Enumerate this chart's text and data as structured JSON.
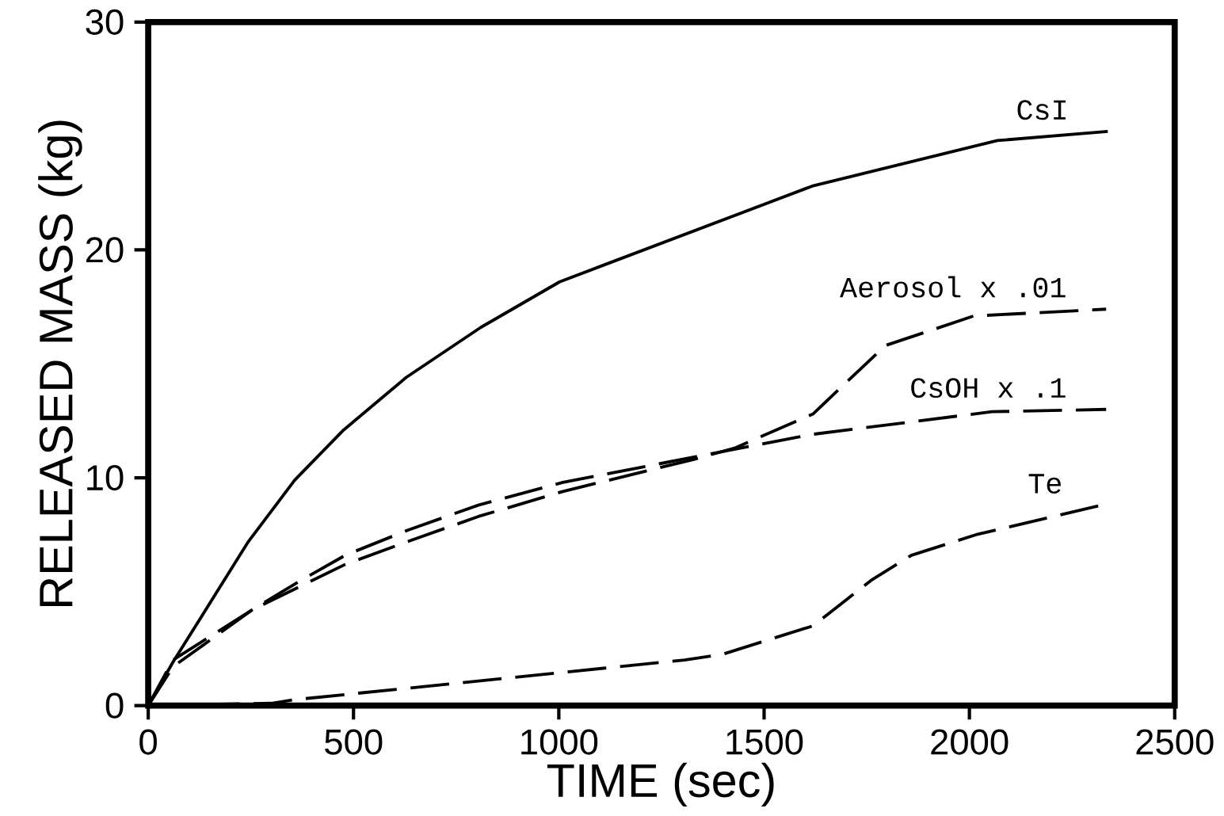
{
  "chart_data": {
    "type": "line",
    "xlabel": "TIME  (sec)",
    "ylabel": "RELEASED MASS  (kg)",
    "xlim": [
      0,
      2500
    ],
    "ylim": [
      0,
      30
    ],
    "xticks": [
      0,
      500,
      1000,
      1500,
      2000,
      2500
    ],
    "yticks": [
      0,
      10,
      20,
      30
    ],
    "grid": false,
    "legend": false,
    "series": [
      {
        "name": "CsI",
        "color": "#000000",
        "line_style": "solid",
        "x": [
          0,
          60,
          244,
          357,
          476,
          628,
          810,
          1002,
          1617,
          2068,
          2337
        ],
        "values": [
          0,
          1.9,
          7.2,
          9.9,
          12.1,
          14.4,
          16.6,
          18.6,
          22.8,
          24.8,
          25.2
        ]
      },
      {
        "name": "Aerosol x .01",
        "color": "#000000",
        "line_style": "dashed",
        "x": [
          0,
          60,
          253,
          480,
          632,
          804,
          1010,
          1327,
          1428,
          1619,
          1795,
          2010,
          2333
        ],
        "values": [
          0,
          2.0,
          4.2,
          6.2,
          7.2,
          8.3,
          9.4,
          10.8,
          11.3,
          12.8,
          15.8,
          17.1,
          17.4
        ]
      },
      {
        "name": "CsOH x .1",
        "color": "#000000",
        "line_style": "dashed",
        "x": [
          0,
          60,
          253,
          363,
          480,
          632,
          804,
          1010,
          1327,
          1615,
          2055,
          2333
        ],
        "values": [
          0,
          1.7,
          4.2,
          5.4,
          6.6,
          7.7,
          8.8,
          9.8,
          10.9,
          11.9,
          12.9,
          13.0
        ]
      },
      {
        "name": "Te",
        "color": "#000000",
        "line_style": "dashed",
        "x": [
          0,
          300,
          351,
          1306,
          1398,
          1619,
          1761,
          1859,
          2016,
          2323
        ],
        "values": [
          0,
          0.1,
          0.25,
          2.0,
          2.25,
          3.5,
          5.5,
          6.6,
          7.5,
          8.8
        ]
      }
    ]
  }
}
